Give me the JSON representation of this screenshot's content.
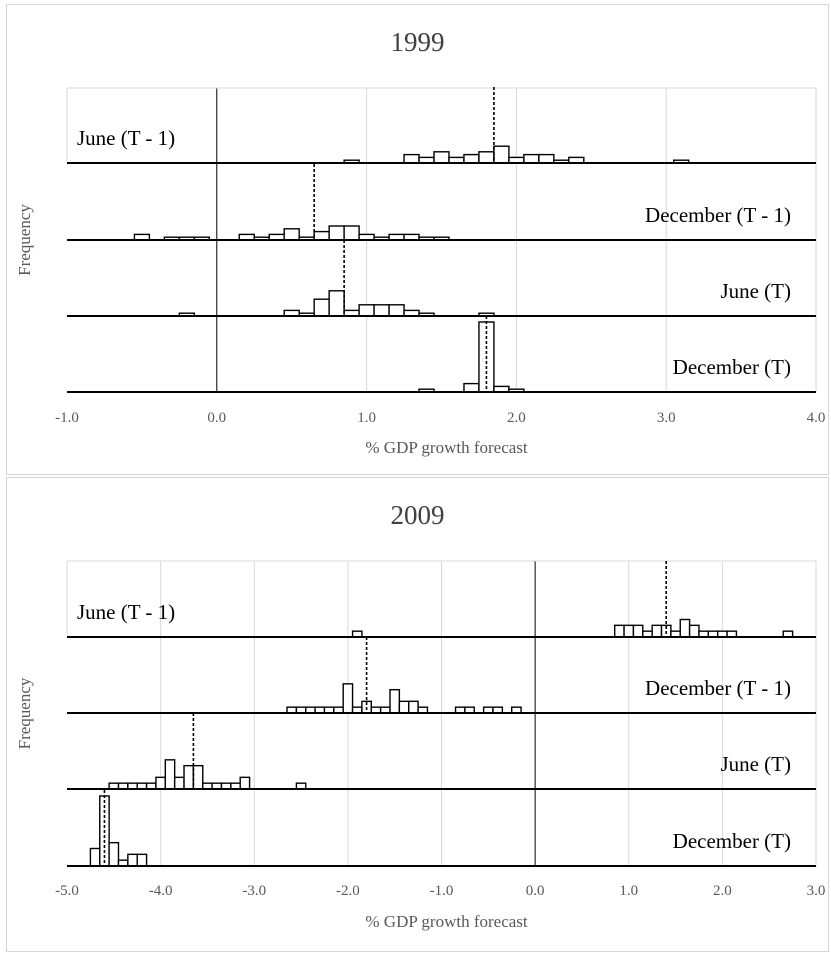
{
  "chart_data": [
    {
      "type": "histogram",
      "title": "1999",
      "xlabel": "% GDP growth forecast",
      "ylabel": "Frequency",
      "xlim": [
        -1.0,
        4.0
      ],
      "xticks": [
        -1.0,
        0.0,
        1.0,
        2.0,
        3.0,
        4.0
      ],
      "xtick_labels": [
        "-1.0",
        "0.0",
        "1.0",
        "2.0",
        "3.0",
        "4.0"
      ],
      "grid": "vertical",
      "zero_line": 0.0,
      "bin_width": 0.1,
      "rows": [
        {
          "label": "June (T - 1)",
          "label_position": "left",
          "mean": 1.85,
          "bins": [
            [
              0.9,
              1
            ],
            [
              1.3,
              3
            ],
            [
              1.4,
              2
            ],
            [
              1.5,
              4
            ],
            [
              1.6,
              2
            ],
            [
              1.7,
              3
            ],
            [
              1.8,
              4
            ],
            [
              1.9,
              6
            ],
            [
              2.0,
              2
            ],
            [
              2.1,
              3
            ],
            [
              2.2,
              3
            ],
            [
              2.3,
              1
            ],
            [
              2.4,
              2
            ],
            [
              3.1,
              1
            ]
          ]
        },
        {
          "label": "December (T - 1)",
          "label_position": "right",
          "mean": 0.65,
          "bins": [
            [
              -0.5,
              2
            ],
            [
              -0.3,
              1
            ],
            [
              -0.2,
              1
            ],
            [
              -0.1,
              1
            ],
            [
              0.2,
              2
            ],
            [
              0.3,
              1
            ],
            [
              0.4,
              2
            ],
            [
              0.5,
              4
            ],
            [
              0.6,
              1
            ],
            [
              0.7,
              3
            ],
            [
              0.8,
              5
            ],
            [
              0.9,
              5
            ],
            [
              1.0,
              2
            ],
            [
              1.1,
              1
            ],
            [
              1.2,
              2
            ],
            [
              1.3,
              2
            ],
            [
              1.4,
              1
            ],
            [
              1.5,
              1
            ]
          ]
        },
        {
          "label": "June (T)",
          "label_position": "right",
          "mean": 0.85,
          "bins": [
            [
              -0.2,
              1
            ],
            [
              0.5,
              2
            ],
            [
              0.6,
              1
            ],
            [
              0.7,
              6
            ],
            [
              0.8,
              9
            ],
            [
              0.9,
              2
            ],
            [
              1.0,
              4
            ],
            [
              1.1,
              4
            ],
            [
              1.2,
              4
            ],
            [
              1.3,
              2
            ],
            [
              1.4,
              1
            ],
            [
              1.8,
              1
            ]
          ]
        },
        {
          "label": "December (T)",
          "label_position": "right",
          "mean": 1.8,
          "bins": [
            [
              1.4,
              1
            ],
            [
              1.7,
              3
            ],
            [
              1.8,
              25
            ],
            [
              1.9,
              2
            ],
            [
              2.0,
              1
            ]
          ]
        }
      ]
    },
    {
      "type": "histogram",
      "title": "2009",
      "xlabel": "% GDP growth forecast",
      "ylabel": "Frequency",
      "xlim": [
        -5.0,
        3.0
      ],
      "xticks": [
        -5.0,
        -4.0,
        -3.0,
        -2.0,
        -1.0,
        0.0,
        1.0,
        2.0,
        3.0
      ],
      "xtick_labels": [
        "-5.0",
        "-4.0",
        "-3.0",
        "-2.0",
        "-1.0",
        "0.0",
        "1.0",
        "2.0",
        "3.0"
      ],
      "grid": "vertical",
      "zero_line": 0.0,
      "bin_width": 0.1,
      "rows": [
        {
          "label": "June (T - 1)",
          "label_position": "left",
          "mean": 1.4,
          "bins": [
            [
              -1.9,
              1
            ],
            [
              0.9,
              2
            ],
            [
              1.0,
              2
            ],
            [
              1.1,
              2
            ],
            [
              1.2,
              1
            ],
            [
              1.3,
              2
            ],
            [
              1.4,
              2
            ],
            [
              1.5,
              1
            ],
            [
              1.6,
              3
            ],
            [
              1.7,
              2
            ],
            [
              1.8,
              1
            ],
            [
              1.9,
              1
            ],
            [
              2.0,
              1
            ],
            [
              2.1,
              1
            ],
            [
              2.7,
              1
            ]
          ]
        },
        {
          "label": "December (T - 1)",
          "label_position": "right",
          "mean": -1.8,
          "bins": [
            [
              -2.6,
              1
            ],
            [
              -2.5,
              1
            ],
            [
              -2.4,
              1
            ],
            [
              -2.3,
              1
            ],
            [
              -2.2,
              1
            ],
            [
              -2.1,
              1
            ],
            [
              -2.0,
              5
            ],
            [
              -1.9,
              1
            ],
            [
              -1.8,
              2
            ],
            [
              -1.7,
              1
            ],
            [
              -1.6,
              1
            ],
            [
              -1.5,
              4
            ],
            [
              -1.4,
              2
            ],
            [
              -1.3,
              2
            ],
            [
              -1.2,
              1
            ],
            [
              -0.8,
              1
            ],
            [
              -0.7,
              1
            ],
            [
              -0.5,
              1
            ],
            [
              -0.4,
              1
            ],
            [
              -0.2,
              1
            ]
          ]
        },
        {
          "label": "June (T)",
          "label_position": "right",
          "mean": -3.65,
          "bins": [
            [
              -4.5,
              1
            ],
            [
              -4.4,
              1
            ],
            [
              -4.3,
              1
            ],
            [
              -4.2,
              1
            ],
            [
              -4.1,
              1
            ],
            [
              -4.0,
              2
            ],
            [
              -3.9,
              5
            ],
            [
              -3.8,
              2
            ],
            [
              -3.7,
              4
            ],
            [
              -3.6,
              4
            ],
            [
              -3.5,
              1
            ],
            [
              -3.4,
              1
            ],
            [
              -3.3,
              1
            ],
            [
              -3.2,
              1
            ],
            [
              -3.1,
              2
            ],
            [
              -2.5,
              1
            ]
          ]
        },
        {
          "label": "December (T)",
          "label_position": "right",
          "mean": -4.6,
          "bins": [
            [
              -4.7,
              3
            ],
            [
              -4.6,
              12
            ],
            [
              -4.5,
              4
            ],
            [
              -4.4,
              1
            ],
            [
              -4.3,
              2
            ],
            [
              -4.2,
              2
            ]
          ]
        }
      ]
    }
  ]
}
